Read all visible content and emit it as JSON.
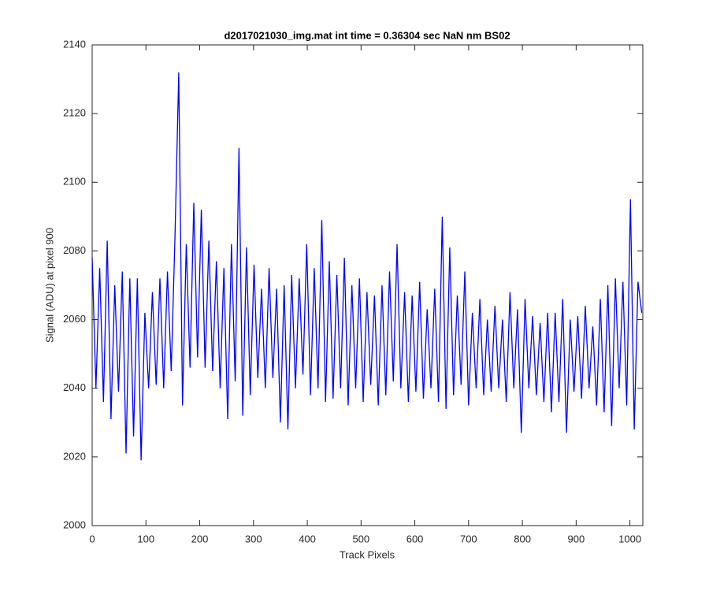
{
  "chart_data": {
    "type": "line",
    "title": "d2017021030_img.mat int time = 0.36304 sec  NaN nm BS02",
    "x_label": "Track Pixels",
    "y_label": "Signal (ADU) at pixel 900",
    "xlim": [
      0,
      1024
    ],
    "ylim": [
      2000,
      2140
    ],
    "xticks": [
      0,
      100,
      200,
      300,
      400,
      500,
      600,
      700,
      800,
      900,
      1000
    ],
    "yticks": [
      2000,
      2020,
      2040,
      2060,
      2080,
      2100,
      2120,
      2140
    ],
    "grid": false,
    "x": [
      0,
      7,
      14,
      21,
      28,
      35,
      42,
      49,
      56,
      63,
      70,
      77,
      84,
      91,
      98,
      105,
      112,
      119,
      126,
      133,
      140,
      147,
      154,
      161,
      168,
      175,
      182,
      189,
      196,
      203,
      210,
      217,
      224,
      231,
      238,
      245,
      252,
      259,
      266,
      273,
      280,
      287,
      294,
      301,
      308,
      315,
      322,
      329,
      336,
      343,
      350,
      357,
      364,
      371,
      378,
      385,
      392,
      399,
      406,
      413,
      420,
      427,
      434,
      441,
      448,
      455,
      462,
      469,
      476,
      483,
      490,
      497,
      504,
      511,
      518,
      525,
      532,
      539,
      546,
      553,
      560,
      567,
      574,
      581,
      588,
      595,
      602,
      609,
      616,
      623,
      630,
      637,
      644,
      651,
      658,
      665,
      672,
      679,
      686,
      693,
      700,
      707,
      714,
      721,
      728,
      735,
      742,
      749,
      756,
      763,
      770,
      777,
      784,
      791,
      798,
      805,
      812,
      819,
      826,
      833,
      840,
      847,
      854,
      861,
      868,
      875,
      882,
      889,
      896,
      903,
      910,
      917,
      924,
      931,
      938,
      945,
      952,
      959,
      966,
      973,
      980,
      987,
      994,
      1001,
      1008,
      1015,
      1022
    ],
    "series": [
      {
        "name": "signal",
        "color": "#0000ff",
        "values": [
          2078,
          2040,
          2075,
          2036,
          2083,
          2031,
          2070,
          2039,
          2074,
          2021,
          2072,
          2026,
          2072,
          2019,
          2062,
          2040,
          2068,
          2041,
          2072,
          2040,
          2074,
          2045,
          2084,
          2132,
          2035,
          2082,
          2046,
          2094,
          2049,
          2092,
          2046,
          2083,
          2045,
          2077,
          2040,
          2075,
          2031,
          2082,
          2042,
          2110,
          2032,
          2081,
          2038,
          2076,
          2043,
          2069,
          2040,
          2075,
          2043,
          2069,
          2030,
          2070,
          2028,
          2073,
          2040,
          2072,
          2044,
          2082,
          2038,
          2075,
          2040,
          2089,
          2036,
          2077,
          2037,
          2073,
          2040,
          2078,
          2035,
          2070,
          2040,
          2072,
          2036,
          2068,
          2041,
          2067,
          2035,
          2070,
          2038,
          2074,
          2042,
          2082,
          2040,
          2068,
          2036,
          2067,
          2039,
          2071,
          2037,
          2063,
          2040,
          2069,
          2036,
          2090,
          2034,
          2081,
          2038,
          2067,
          2041,
          2074,
          2035,
          2062,
          2040,
          2066,
          2038,
          2060,
          2039,
          2064,
          2040,
          2060,
          2036,
          2068,
          2040,
          2063,
          2027,
          2066,
          2040,
          2061,
          2038,
          2059,
          2036,
          2062,
          2033,
          2062,
          2036,
          2066,
          2027,
          2060,
          2039,
          2061,
          2037,
          2064,
          2040,
          2058,
          2035,
          2066,
          2033,
          2070,
          2029,
          2072,
          2040,
          2071,
          2035,
          2095,
          2028,
          2071,
          2062
        ]
      }
    ]
  }
}
